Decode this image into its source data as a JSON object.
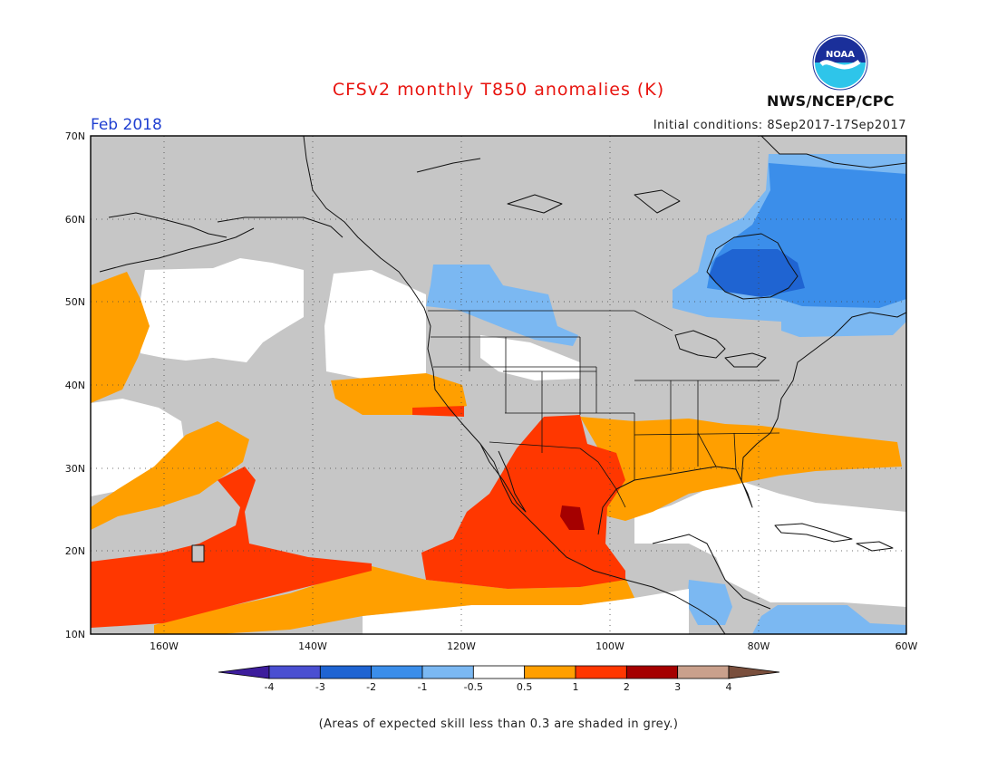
{
  "header": {
    "title": "CFSv2 monthly T850 anomalies (K)",
    "agency": "NWS/NCEP/CPC",
    "logo_text": "NOAA",
    "period": "Feb 2018",
    "initial_conditions": "Initial conditions: 8Sep2017-17Sep2017"
  },
  "map": {
    "lat_labels": [
      "70N",
      "60N",
      "50N",
      "40N",
      "30N",
      "20N",
      "10N"
    ],
    "lon_labels": [
      "160W",
      "140W",
      "120W",
      "100W",
      "80W",
      "60W"
    ],
    "extent": {
      "lon": [
        -172,
        -60
      ],
      "lat": [
        10,
        70
      ]
    },
    "grid": true
  },
  "legend": {
    "tick_labels": [
      "-4",
      "-3",
      "-2",
      "-1",
      "-0.5",
      "0.5",
      "1",
      "2",
      "3",
      "4"
    ],
    "bins": [
      {
        "color": "#3d1d9c"
      },
      {
        "color": "#4a4fd1"
      },
      {
        "color": "#1f64d2"
      },
      {
        "color": "#3b8eea"
      },
      {
        "color": "#7bb8f2"
      },
      {
        "color": "#ffffff"
      },
      {
        "color": "#ff9f00"
      },
      {
        "color": "#ff3700"
      },
      {
        "color": "#a50000"
      },
      {
        "color": "#c9a08c"
      },
      {
        "color": "#7a4f3d"
      }
    ]
  },
  "footnote": "(Areas of expected skill less than 0.3 are shaded in grey.)",
  "colors": {
    "grey_skill": "#c6c6c6",
    "coast": "#111111",
    "title": "#e8140f",
    "period": "#1f3fd1"
  }
}
